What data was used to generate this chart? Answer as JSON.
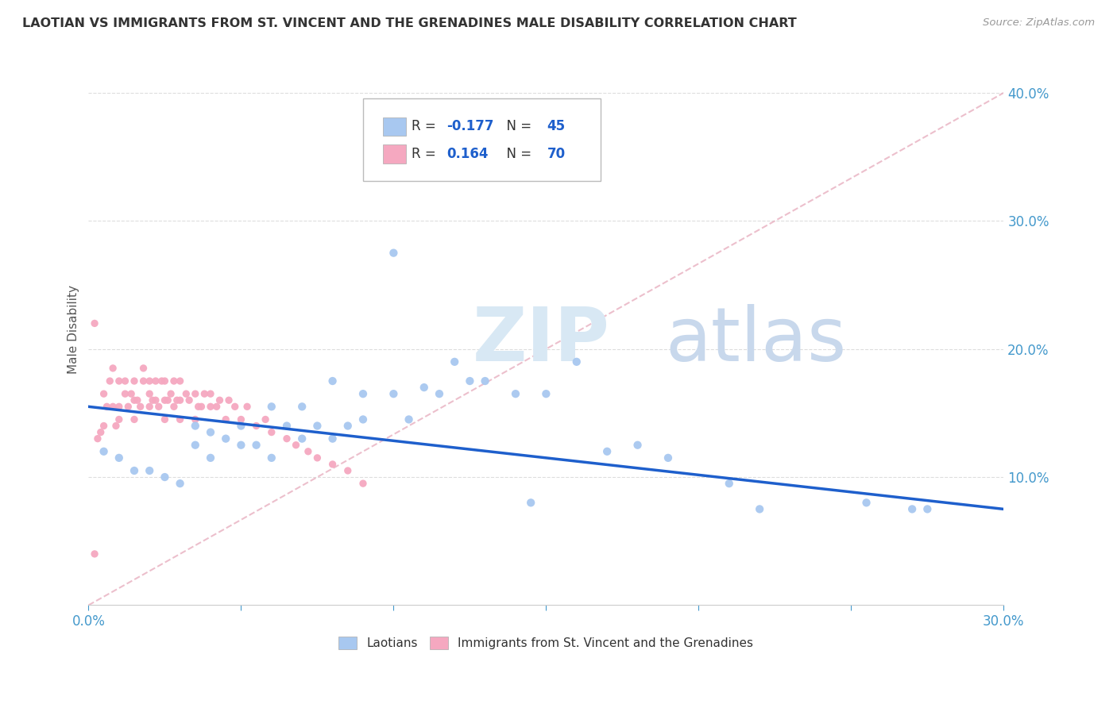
{
  "title": "LAOTIAN VS IMMIGRANTS FROM ST. VINCENT AND THE GRENADINES MALE DISABILITY CORRELATION CHART",
  "source_text": "Source: ZipAtlas.com",
  "ylabel": "Male Disability",
  "xlim": [
    0.0,
    0.3
  ],
  "ylim": [
    0.0,
    0.43
  ],
  "x_ticks": [
    0.0,
    0.05,
    0.1,
    0.15,
    0.2,
    0.25,
    0.3
  ],
  "x_tick_labels": [
    "0.0%",
    "",
    "",
    "",
    "",
    "",
    "30.0%"
  ],
  "y_ticks_right": [
    0.1,
    0.2,
    0.3,
    0.4
  ],
  "y_tick_labels_right": [
    "10.0%",
    "20.0%",
    "30.0%",
    "40.0%"
  ],
  "blue_color": "#A8C8F0",
  "pink_color": "#F5A8C0",
  "blue_line_color": "#1E5FCC",
  "pink_line_color": "#E8B0C0",
  "laotian_x": [
    0.005,
    0.01,
    0.015,
    0.02,
    0.025,
    0.03,
    0.035,
    0.035,
    0.04,
    0.04,
    0.045,
    0.05,
    0.05,
    0.055,
    0.06,
    0.06,
    0.065,
    0.07,
    0.07,
    0.075,
    0.08,
    0.08,
    0.085,
    0.09,
    0.09,
    0.1,
    0.1,
    0.105,
    0.11,
    0.115,
    0.12,
    0.125,
    0.13,
    0.14,
    0.145,
    0.15,
    0.16,
    0.17,
    0.18,
    0.19,
    0.21,
    0.22,
    0.255,
    0.27,
    0.275
  ],
  "laotian_y": [
    0.12,
    0.115,
    0.105,
    0.105,
    0.1,
    0.095,
    0.125,
    0.14,
    0.115,
    0.135,
    0.13,
    0.125,
    0.14,
    0.125,
    0.115,
    0.155,
    0.14,
    0.13,
    0.155,
    0.14,
    0.13,
    0.175,
    0.14,
    0.145,
    0.165,
    0.165,
    0.275,
    0.145,
    0.17,
    0.165,
    0.19,
    0.175,
    0.175,
    0.165,
    0.08,
    0.165,
    0.19,
    0.12,
    0.125,
    0.115,
    0.095,
    0.075,
    0.08,
    0.075,
    0.075
  ],
  "svg_x": [
    0.002,
    0.003,
    0.004,
    0.005,
    0.005,
    0.006,
    0.007,
    0.008,
    0.008,
    0.009,
    0.01,
    0.01,
    0.01,
    0.012,
    0.012,
    0.013,
    0.014,
    0.015,
    0.015,
    0.015,
    0.016,
    0.017,
    0.018,
    0.018,
    0.02,
    0.02,
    0.02,
    0.021,
    0.022,
    0.022,
    0.023,
    0.024,
    0.025,
    0.025,
    0.025,
    0.026,
    0.027,
    0.028,
    0.028,
    0.029,
    0.03,
    0.03,
    0.03,
    0.032,
    0.033,
    0.035,
    0.035,
    0.036,
    0.037,
    0.038,
    0.04,
    0.04,
    0.042,
    0.043,
    0.045,
    0.046,
    0.048,
    0.05,
    0.052,
    0.055,
    0.058,
    0.06,
    0.065,
    0.068,
    0.072,
    0.075,
    0.08,
    0.085,
    0.09,
    0.002
  ],
  "svg_y": [
    0.04,
    0.13,
    0.135,
    0.14,
    0.165,
    0.155,
    0.175,
    0.155,
    0.185,
    0.14,
    0.145,
    0.155,
    0.175,
    0.165,
    0.175,
    0.155,
    0.165,
    0.145,
    0.16,
    0.175,
    0.16,
    0.155,
    0.185,
    0.175,
    0.155,
    0.165,
    0.175,
    0.16,
    0.16,
    0.175,
    0.155,
    0.175,
    0.145,
    0.16,
    0.175,
    0.16,
    0.165,
    0.155,
    0.175,
    0.16,
    0.145,
    0.16,
    0.175,
    0.165,
    0.16,
    0.145,
    0.165,
    0.155,
    0.155,
    0.165,
    0.155,
    0.165,
    0.155,
    0.16,
    0.145,
    0.16,
    0.155,
    0.145,
    0.155,
    0.14,
    0.145,
    0.135,
    0.13,
    0.125,
    0.12,
    0.115,
    0.11,
    0.105,
    0.095,
    0.22
  ]
}
